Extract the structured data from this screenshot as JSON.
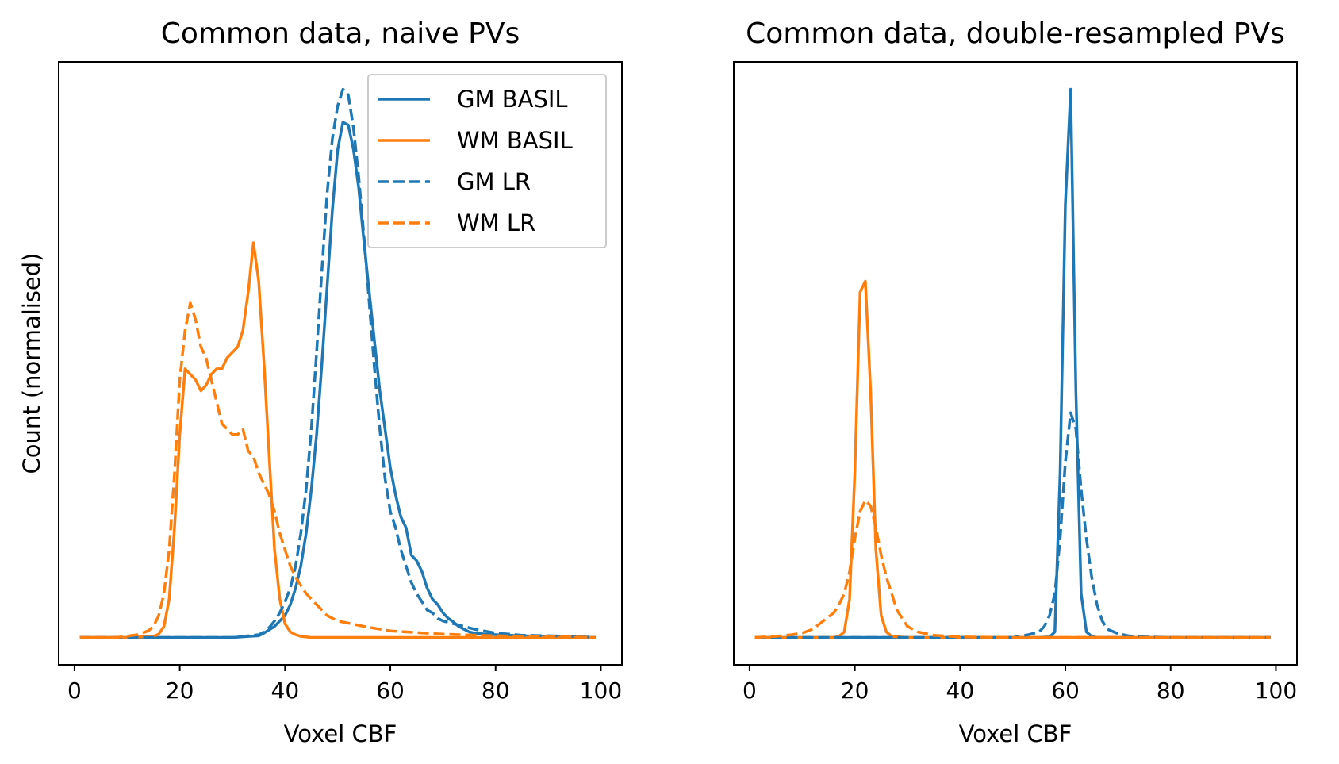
{
  "colors": {
    "gm": "#1f77b4",
    "wm": "#ff7f0e"
  },
  "chart_data": [
    {
      "type": "line",
      "title": "Common data, naive PVs",
      "xlabel": "Voxel CBF",
      "ylabel": "Count (normalised)",
      "xlim": [
        -3,
        104
      ],
      "ylim": [
        -0.05,
        1.05
      ],
      "xticks": [
        0,
        20,
        40,
        60,
        80,
        100
      ],
      "legend": "top-right",
      "series": [
        {
          "name": "GM BASIL",
          "color": "#1f77b4",
          "dash": false,
          "x": [
            1,
            10,
            20,
            25,
            30,
            33,
            35,
            36,
            38,
            40,
            41,
            42,
            43,
            44,
            45,
            46,
            47,
            48,
            49,
            50,
            51,
            52,
            53,
            54,
            55,
            56,
            57,
            58,
            59,
            60,
            61,
            62,
            63,
            64,
            65,
            66,
            67,
            68,
            69,
            70,
            71,
            72,
            73,
            74,
            75,
            76,
            78,
            80,
            85,
            90,
            95,
            99
          ],
          "y": [
            0,
            0,
            0,
            0,
            0,
            0.002,
            0.003,
            0.008,
            0.02,
            0.04,
            0.06,
            0.09,
            0.13,
            0.19,
            0.27,
            0.37,
            0.5,
            0.64,
            0.78,
            0.89,
            0.94,
            0.935,
            0.89,
            0.82,
            0.72,
            0.63,
            0.54,
            0.45,
            0.38,
            0.31,
            0.26,
            0.22,
            0.2,
            0.15,
            0.14,
            0.12,
            0.09,
            0.07,
            0.06,
            0.045,
            0.035,
            0.028,
            0.02,
            0.015,
            0.01,
            0.008,
            0.006,
            0.005,
            0.003,
            0.002,
            0.001,
            0
          ]
        },
        {
          "name": "WM BASIL",
          "color": "#ff7f0e",
          "dash": false,
          "x": [
            1,
            10,
            15,
            16,
            17,
            18,
            19,
            20,
            21,
            22,
            23,
            24,
            25,
            26,
            27,
            28,
            29,
            30,
            31,
            32,
            33,
            34,
            35,
            36,
            37,
            38,
            39,
            40,
            41,
            42,
            43,
            45,
            50,
            60,
            80,
            99
          ],
          "y": [
            0,
            0,
            0.002,
            0.006,
            0.02,
            0.07,
            0.2,
            0.37,
            0.49,
            0.48,
            0.47,
            0.45,
            0.46,
            0.48,
            0.49,
            0.49,
            0.51,
            0.52,
            0.53,
            0.56,
            0.63,
            0.72,
            0.65,
            0.5,
            0.33,
            0.16,
            0.07,
            0.025,
            0.01,
            0.005,
            0.002,
            0,
            0,
            0,
            0,
            0
          ]
        },
        {
          "name": "GM LR",
          "color": "#1f77b4",
          "dash": true,
          "x": [
            1,
            10,
            20,
            30,
            35,
            36,
            37,
            38,
            39,
            40,
            41,
            42,
            43,
            44,
            45,
            46,
            47,
            48,
            49,
            50,
            51,
            52,
            53,
            54,
            55,
            56,
            57,
            58,
            59,
            60,
            61,
            62,
            63,
            64,
            65,
            66,
            67,
            68,
            69,
            70,
            72,
            74,
            76,
            80,
            85,
            90,
            95,
            99
          ],
          "y": [
            0,
            0,
            0,
            0,
            0.005,
            0.01,
            0.018,
            0.03,
            0.045,
            0.065,
            0.09,
            0.13,
            0.19,
            0.27,
            0.38,
            0.52,
            0.67,
            0.81,
            0.91,
            0.97,
            1.0,
            0.99,
            0.93,
            0.84,
            0.73,
            0.61,
            0.49,
            0.38,
            0.29,
            0.23,
            0.2,
            0.16,
            0.13,
            0.1,
            0.08,
            0.065,
            0.05,
            0.045,
            0.035,
            0.03,
            0.025,
            0.02,
            0.015,
            0.008,
            0.004,
            0.003,
            0.002,
            0
          ]
        },
        {
          "name": "WM LR",
          "color": "#ff7f0e",
          "dash": true,
          "x": [
            1,
            8,
            12,
            14,
            15,
            16,
            17,
            18,
            19,
            20,
            21,
            22,
            23,
            24,
            25,
            26,
            27,
            28,
            29,
            30,
            31,
            32,
            33,
            34,
            35,
            36,
            37,
            38,
            39,
            40,
            41,
            42,
            44,
            46,
            48,
            50,
            55,
            60,
            70,
            80,
            90,
            99
          ],
          "y": [
            0,
            0,
            0.005,
            0.012,
            0.02,
            0.04,
            0.08,
            0.16,
            0.3,
            0.47,
            0.56,
            0.61,
            0.58,
            0.53,
            0.51,
            0.47,
            0.43,
            0.39,
            0.38,
            0.37,
            0.37,
            0.38,
            0.34,
            0.33,
            0.3,
            0.28,
            0.26,
            0.23,
            0.19,
            0.16,
            0.13,
            0.11,
            0.08,
            0.06,
            0.04,
            0.03,
            0.02,
            0.012,
            0.006,
            0.003,
            0.002,
            0
          ]
        }
      ]
    },
    {
      "type": "line",
      "title": "Common data, double-resampled PVs",
      "xlabel": "Voxel CBF",
      "xlim": [
        -3,
        104
      ],
      "ylim": [
        -0.05,
        1.05
      ],
      "xticks": [
        0,
        20,
        40,
        60,
        80,
        100
      ],
      "series": [
        {
          "color": "#1f77b4",
          "dash": false,
          "x": [
            1,
            40,
            55,
            57,
            58,
            59,
            60,
            61,
            62,
            63,
            64,
            65,
            66,
            70,
            80,
            99
          ],
          "y": [
            0,
            0,
            0,
            0.001,
            0.01,
            0.3,
            0.79,
            1.0,
            0.45,
            0.08,
            0.01,
            0.002,
            0,
            0,
            0,
            0
          ]
        },
        {
          "color": "#ff7f0e",
          "dash": false,
          "x": [
            1,
            10,
            16,
            17,
            18,
            19,
            20,
            21,
            22,
            23,
            24,
            25,
            26,
            27,
            30,
            40,
            60,
            99
          ],
          "y": [
            0,
            0,
            0,
            0.002,
            0.01,
            0.07,
            0.3,
            0.63,
            0.65,
            0.45,
            0.16,
            0.04,
            0.01,
            0.002,
            0,
            0,
            0,
            0
          ]
        },
        {
          "color": "#1f77b4",
          "dash": true,
          "x": [
            1,
            40,
            50,
            53,
            55,
            56,
            57,
            58,
            59,
            60,
            61,
            62,
            63,
            64,
            65,
            66,
            67,
            68,
            70,
            72,
            75,
            80,
            99
          ],
          "y": [
            0,
            0,
            0,
            0.005,
            0.01,
            0.02,
            0.04,
            0.08,
            0.18,
            0.32,
            0.41,
            0.38,
            0.27,
            0.18,
            0.11,
            0.06,
            0.03,
            0.015,
            0.007,
            0.003,
            0.001,
            0,
            0
          ]
        },
        {
          "color": "#ff7f0e",
          "dash": true,
          "x": [
            1,
            5,
            8,
            10,
            12,
            14,
            16,
            17,
            18,
            19,
            20,
            21,
            22,
            23,
            24,
            25,
            26,
            27,
            28,
            29,
            30,
            32,
            35,
            40,
            50,
            99
          ],
          "y": [
            0,
            0.002,
            0.005,
            0.008,
            0.015,
            0.03,
            0.045,
            0.06,
            0.08,
            0.12,
            0.18,
            0.23,
            0.25,
            0.24,
            0.2,
            0.15,
            0.11,
            0.08,
            0.05,
            0.035,
            0.02,
            0.01,
            0.004,
            0.001,
            0,
            0
          ]
        }
      ]
    }
  ]
}
